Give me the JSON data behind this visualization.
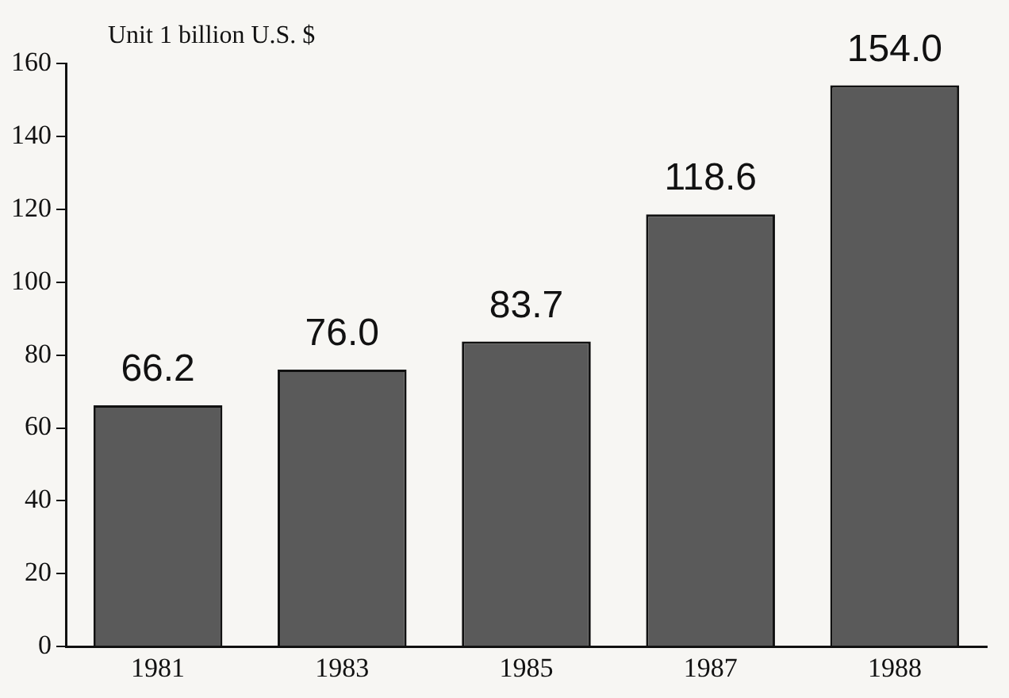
{
  "chart_data": {
    "type": "bar",
    "ylabel": "Unit 1 billion U.S. $",
    "categories": [
      "1981",
      "1983",
      "1985",
      "1987",
      "1988"
    ],
    "values": [
      66.2,
      76.0,
      83.7,
      118.6,
      154.0
    ],
    "value_labels": [
      "66.2",
      "76.0",
      "83.7",
      "118.6",
      "154.0"
    ],
    "color": "#5a5a5a",
    "ylim": [
      0,
      160
    ],
    "yticks": [
      0,
      20,
      40,
      60,
      80,
      100,
      120,
      140,
      160
    ],
    "grid": false,
    "legend": false
  }
}
